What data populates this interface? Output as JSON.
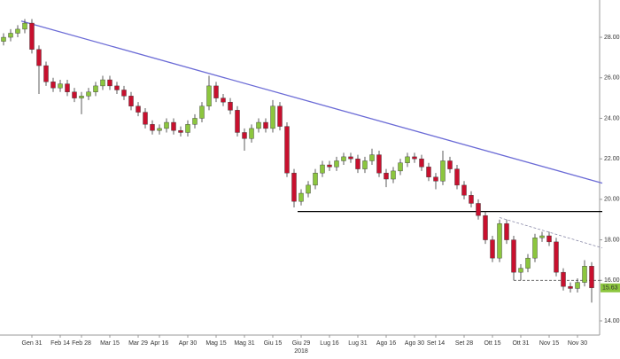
{
  "chart_data": {
    "type": "candlestick",
    "categories": [
      null,
      null,
      null,
      null,
      "Gen 31",
      null,
      null,
      null,
      "Feb 14",
      null,
      null,
      "Feb 28",
      null,
      null,
      null,
      "Mar 15",
      null,
      null,
      null,
      "Mar 29",
      null,
      null,
      "Apr 16",
      null,
      null,
      null,
      "Apr 30",
      null,
      null,
      null,
      "Mag 15",
      null,
      null,
      null,
      "Mag 31",
      null,
      null,
      null,
      "Giu 15",
      null,
      null,
      null,
      "Giu 29",
      null,
      null,
      null,
      "Lug 16",
      null,
      null,
      null,
      "Lug 31",
      null,
      null,
      null,
      "Ago 16",
      null,
      null,
      null,
      "Ago 30",
      null,
      null,
      "Set 14",
      null,
      null,
      null,
      "Set 28",
      null,
      null,
      null,
      "Ott 15",
      null,
      null,
      null,
      "Ott 31",
      null,
      null,
      null,
      "Nov 15",
      null,
      null,
      null,
      "Nov 30",
      null,
      null
    ],
    "year_label": "2018",
    "open": [
      27.8,
      28.0,
      28.2,
      28.4,
      28.7,
      27.4,
      26.6,
      25.8,
      25.5,
      25.7,
      25.3,
      25.0,
      25.1,
      25.3,
      25.6,
      25.9,
      25.6,
      25.4,
      25.1,
      24.6,
      24.3,
      23.7,
      23.4,
      23.5,
      23.8,
      23.4,
      23.3,
      23.7,
      24.0,
      24.6,
      25.6,
      25.0,
      24.8,
      24.4,
      23.3,
      23.0,
      23.5,
      23.8,
      23.5,
      24.6,
      23.6,
      21.3,
      19.9,
      20.3,
      20.7,
      21.3,
      21.7,
      21.6,
      21.9,
      22.1,
      22.0,
      21.5,
      21.9,
      22.2,
      21.3,
      21.0,
      21.4,
      21.8,
      22.1,
      22.0,
      21.6,
      21.1,
      20.9,
      21.9,
      21.5,
      20.7,
      20.2,
      19.8,
      19.2,
      18.0,
      17.1,
      18.8,
      18.0,
      16.4,
      16.6,
      17.1,
      18.1,
      18.2,
      17.9,
      16.4,
      15.7,
      15.6,
      15.9,
      16.7
    ],
    "high": [
      28.2,
      28.4,
      28.6,
      28.9,
      28.9,
      27.6,
      26.8,
      26.0,
      25.9,
      25.9,
      25.5,
      25.3,
      25.5,
      25.8,
      26.1,
      26.1,
      25.8,
      25.6,
      25.3,
      24.8,
      24.5,
      23.9,
      23.7,
      24.0,
      24.0,
      23.6,
      23.9,
      24.2,
      24.8,
      26.1,
      25.8,
      25.2,
      25.0,
      24.6,
      23.5,
      23.7,
      24.0,
      24.0,
      24.9,
      24.8,
      23.8,
      21.5,
      20.5,
      20.9,
      21.5,
      21.9,
      21.9,
      22.1,
      22.3,
      22.3,
      22.2,
      22.1,
      22.5,
      22.4,
      21.5,
      21.6,
      22.0,
      22.3,
      22.3,
      22.2,
      21.8,
      21.3,
      22.4,
      22.1,
      21.7,
      20.9,
      20.4,
      20.0,
      19.4,
      18.2,
      19.0,
      19.0,
      18.2,
      16.8,
      17.3,
      18.3,
      18.4,
      18.4,
      18.1,
      16.6,
      15.9,
      16.1,
      17.0,
      16.9
    ],
    "low": [
      27.6,
      27.8,
      28.0,
      28.2,
      27.2,
      25.2,
      25.6,
      25.3,
      25.3,
      25.1,
      24.8,
      24.2,
      24.9,
      25.1,
      25.4,
      25.4,
      25.2,
      24.9,
      24.4,
      24.1,
      23.5,
      23.2,
      23.2,
      23.3,
      23.2,
      23.1,
      23.1,
      23.5,
      23.8,
      24.4,
      24.8,
      24.6,
      24.2,
      23.1,
      22.4,
      22.8,
      23.3,
      23.3,
      23.3,
      23.4,
      21.1,
      19.6,
      19.7,
      20.1,
      20.5,
      21.1,
      21.4,
      21.4,
      21.7,
      21.8,
      21.3,
      21.3,
      21.7,
      21.1,
      20.6,
      20.8,
      21.2,
      21.6,
      21.8,
      21.4,
      20.9,
      20.5,
      20.7,
      21.3,
      20.5,
      20.0,
      19.6,
      19.0,
      17.8,
      16.9,
      16.9,
      17.8,
      16.0,
      16.0,
      16.4,
      16.9,
      17.9,
      17.7,
      16.2,
      15.5,
      15.4,
      15.4,
      15.7,
      14.9
    ],
    "close": [
      28.0,
      28.2,
      28.4,
      28.7,
      27.4,
      26.6,
      25.8,
      25.5,
      25.7,
      25.3,
      25.0,
      25.1,
      25.3,
      25.6,
      25.9,
      25.6,
      25.4,
      25.1,
      24.6,
      24.3,
      23.7,
      23.4,
      23.5,
      23.8,
      23.4,
      23.3,
      23.7,
      24.0,
      24.6,
      25.6,
      25.0,
      24.8,
      24.4,
      23.3,
      23.0,
      23.5,
      23.8,
      23.5,
      24.6,
      23.6,
      21.3,
      19.9,
      20.3,
      20.7,
      21.3,
      21.7,
      21.6,
      21.9,
      22.1,
      22.0,
      21.5,
      21.9,
      22.2,
      21.3,
      21.0,
      21.4,
      21.8,
      22.1,
      22.0,
      21.6,
      21.1,
      20.9,
      21.9,
      21.5,
      20.7,
      20.2,
      19.8,
      19.2,
      18.0,
      17.1,
      18.8,
      18.0,
      16.4,
      16.6,
      17.1,
      18.1,
      18.2,
      17.9,
      16.4,
      15.7,
      15.6,
      15.9,
      16.7,
      15.63
    ],
    "up_color": "#8cc63e",
    "down_color": "#c8102e",
    "wick_color": "#333333",
    "ylim": [
      13.3,
      29.84
    ],
    "yticks": [
      {
        "value": 14,
        "label": "14.00"
      },
      {
        "value": 16,
        "label": "16.00"
      },
      {
        "value": 18,
        "label": "18.00"
      },
      {
        "value": 20,
        "label": "20.00"
      },
      {
        "value": 22,
        "label": "22.00"
      },
      {
        "value": 24,
        "label": "24.00"
      },
      {
        "value": 26,
        "label": "26.00"
      },
      {
        "value": 28,
        "label": "28.00"
      }
    ],
    "lines": [
      {
        "color": "#6b6bd6",
        "dash": false,
        "x": [
          2.5,
          84.5
        ],
        "y": [
          28.8,
          20.8
        ]
      },
      {
        "color": "#000000",
        "dash": false,
        "x": [
          41.5,
          84.5
        ],
        "y": [
          19.4,
          19.4
        ]
      },
      {
        "color": "#8a8aa8",
        "dash": true,
        "x": [
          70,
          84.5
        ],
        "y": [
          19.1,
          17.6
        ]
      },
      {
        "color": "#555555",
        "dash": true,
        "x": [
          72,
          84.5
        ],
        "y": [
          16.0,
          16.0
        ]
      }
    ],
    "last_price": {
      "value": 15.63,
      "label": "15.63"
    }
  }
}
